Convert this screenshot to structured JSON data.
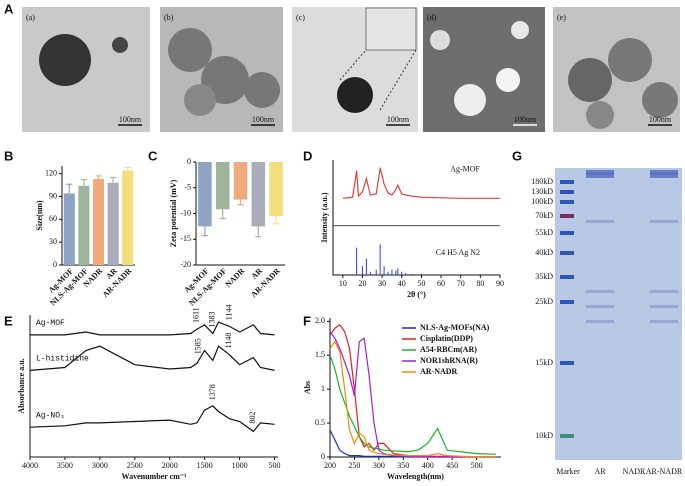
{
  "panel_A": {
    "label": "A",
    "images": [
      {
        "label": "(a)",
        "scale": "100nm"
      },
      {
        "label": "(b)",
        "scale": "100nm"
      },
      {
        "label": "(c)",
        "scale": "100nm"
      },
      {
        "label": "(d)",
        "scale": "100nm"
      },
      {
        "label": "(e)",
        "scale": "100nm"
      }
    ]
  },
  "gel": {
    "label": "G",
    "markers": [
      "180kD",
      "130kD",
      "100kD",
      "70kD",
      "55kD",
      "40kD",
      "35kD",
      "25kD",
      "15kD",
      "10kD"
    ],
    "lanes": [
      "Marker",
      "AR",
      "NADR",
      "AR-NADR"
    ]
  },
  "chart_data": [
    {
      "type": "bar",
      "label": "B",
      "y_label": "Size(nm)",
      "categories": [
        "Ag-MOF",
        "NLS-Ag-MOF",
        "NADR",
        "AR",
        "AR-NADR"
      ],
      "values": [
        94,
        104,
        113,
        108,
        124
      ],
      "errors": [
        12,
        8,
        4,
        7,
        4
      ],
      "colors": [
        "#8fa3c4",
        "#9fb39d",
        "#f2aa7c",
        "#a9adb9",
        "#f3de7c"
      ],
      "ylim": [
        0,
        130
      ],
      "yticks": [
        0,
        30,
        60,
        90,
        120
      ]
    },
    {
      "type": "bar",
      "label": "C",
      "y_label": "Zeta potential (mV)",
      "categories": [
        "Ag-MOF",
        "NLS-Ag-MOF",
        "NADR",
        "AR",
        "AR-NADR"
      ],
      "values": [
        -12.5,
        -9.2,
        -7.3,
        -12.5,
        -10.5
      ],
      "errors": [
        1.8,
        1.8,
        1,
        2,
        1.5
      ],
      "colors": [
        "#8fa3c4",
        "#9fb39d",
        "#f2aa7c",
        "#a9adb9",
        "#f3de7c"
      ],
      "ylim": [
        -20,
        0
      ],
      "yticks": [
        0,
        -5,
        -10,
        -15,
        -20
      ]
    },
    {
      "type": "line",
      "label": "D",
      "x_label": "2θ (°)",
      "y_label": "Intensity (a.u.)",
      "x": [
        10,
        15,
        17,
        18,
        20,
        22,
        24,
        27,
        29,
        31,
        33,
        35,
        37,
        38,
        40,
        42,
        45,
        50,
        60,
        70,
        80,
        90
      ],
      "series": [
        {
          "name": "Ag-MOF",
          "color": "#e0403a",
          "values": [
            7,
            7.1,
            9.5,
            7.2,
            7.6,
            8.8,
            7.3,
            7.4,
            9.8,
            8.3,
            7.5,
            7.3,
            7.8,
            8.2,
            7.4,
            7.3,
            7.2,
            7.1,
            7.05,
            7,
            7,
            7
          ]
        },
        {
          "name": "C4 H5 Ag N2",
          "color": "#2b3fd6",
          "style": "stick",
          "values": [
            0,
            0,
            2.5,
            0,
            0.8,
            1.5,
            0.3,
            0.5,
            2.8,
            0.8,
            0.3,
            0.5,
            0.4,
            0.6,
            0.3,
            0.2,
            0.1,
            0.1,
            0.05,
            0,
            0,
            0
          ]
        }
      ],
      "xlim": [
        5,
        90
      ],
      "xticks": [
        10,
        20,
        30,
        40,
        50,
        60,
        70,
        80,
        90
      ],
      "ylim": [
        0,
        10.5
      ]
    },
    {
      "type": "line",
      "label": "E",
      "x_label": "Wavenumber cm⁻¹",
      "y_label": "Absorbance a.u.",
      "x": [
        4000,
        3500,
        3200,
        3000,
        2500,
        2000,
        1700,
        1611,
        1500,
        1383,
        1300,
        1144,
        1000,
        802,
        700,
        500
      ],
      "series": [
        {
          "name": "Ag-MOF",
          "color": "#111111",
          "values": [
            8.6,
            8.6,
            8.8,
            8.6,
            8.6,
            8.6,
            8.7,
            9.0,
            9.3,
            8.7,
            9.5,
            9.2,
            8.8,
            9.3,
            8.7,
            8.6
          ]
        },
        {
          "name": "L-histidine",
          "color": "#111111",
          "values": [
            6.1,
            6.3,
            7.5,
            7.8,
            6.5,
            6.2,
            6.3,
            6.6,
            7.5,
            6.8,
            7.8,
            7.2,
            6.5,
            7.0,
            6.3,
            6.1
          ]
        },
        {
          "name": "Ag-NO₃",
          "color": "#111111",
          "values": [
            2.1,
            2.2,
            2.4,
            2.4,
            2.5,
            2.6,
            2.3,
            2.4,
            3.3,
            3.6,
            3.2,
            2.7,
            2.5,
            1.8,
            2.4,
            2.3
          ]
        }
      ],
      "annotations": [
        {
          "label": "1611",
          "x": 1611,
          "series": 0
        },
        {
          "label": "1383",
          "x": 1383,
          "series": 0
        },
        {
          "label": "1144",
          "x": 1144,
          "series": 0
        },
        {
          "label": "1585",
          "x": 1585,
          "series": 1
        },
        {
          "label": "1148",
          "x": 1148,
          "series": 1
        },
        {
          "label": "1378",
          "x": 1378,
          "series": 2
        },
        {
          "label": "802",
          "x": 802,
          "series": 2
        }
      ],
      "xlim": [
        4000,
        450
      ],
      "xticks": [
        4000,
        3500,
        3000,
        2500,
        2000,
        1500,
        1000,
        500
      ],
      "ylim": [
        0,
        10
      ]
    },
    {
      "type": "line",
      "label": "F",
      "x_label": "Wavelength(nm)",
      "y_label": "Abs",
      "x": [
        200,
        210,
        220,
        230,
        240,
        250,
        260,
        270,
        280,
        290,
        300,
        310,
        330,
        360,
        380,
        400,
        420,
        440,
        500,
        540
      ],
      "series": [
        {
          "name": "NLS-Ag-MOFs(NA)",
          "color": "#1f2fd0",
          "values": [
            0.4,
            0.25,
            0.1,
            0.05,
            0.02,
            0.02,
            0.02,
            0.01,
            0.01,
            0.01,
            0.01,
            0.01,
            0.01,
            0,
            0,
            0,
            0,
            0,
            0,
            0
          ]
        },
        {
          "name": "Cisplatin(DDP)",
          "color": "#e02020",
          "values": [
            1.8,
            1.9,
            1.95,
            1.85,
            1.6,
            1.0,
            0.3,
            0.15,
            0.2,
            0.1,
            0.2,
            0.2,
            0.05,
            0.02,
            0.01,
            0.01,
            0.01,
            0.01,
            0,
            0
          ]
        },
        {
          "name": "A54-RBCm(AR)",
          "color": "#22b030",
          "values": [
            1.5,
            1.3,
            1.0,
            0.8,
            0.6,
            0.45,
            0.3,
            0.2,
            0.15,
            0.13,
            0.12,
            0.1,
            0.09,
            0.08,
            0.1,
            0.2,
            0.42,
            0.1,
            0.05,
            0.04
          ]
        },
        {
          "name": "NOR1shRNA(R)",
          "color": "#a020d0",
          "values": [
            1.85,
            1.75,
            1.6,
            1.4,
            1.2,
            0.9,
            1.7,
            1.75,
            1.2,
            0.5,
            0.1,
            0.05,
            0.02,
            0.01,
            0,
            0,
            0,
            0,
            0,
            0
          ]
        },
        {
          "name": "AR-NADR",
          "color": "#f08a10",
          "values": [
            1.6,
            1.7,
            1.55,
            1.0,
            0.4,
            0.2,
            0.35,
            0.3,
            0.1,
            0.07,
            0.05,
            0.04,
            0.03,
            0.02,
            0.02,
            0.02,
            0.05,
            0.02,
            0,
            0
          ]
        }
      ],
      "xlim": [
        200,
        550
      ],
      "xticks": [
        200,
        250,
        300,
        350,
        400,
        450,
        500
      ],
      "ylim": [
        0,
        2.05
      ],
      "yticks": [
        0,
        0.5,
        1,
        {
          "value": 1.5,
          "label": "1.5"
        },
        {
          "value": 2,
          "label": "2.0"
        }
      ]
    }
  ]
}
